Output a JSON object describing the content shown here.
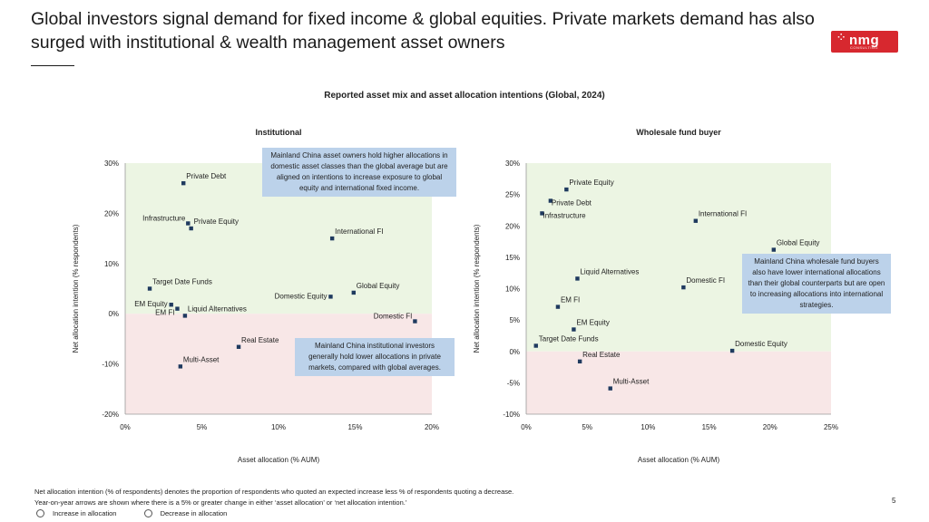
{
  "header": {
    "title": "Global investors signal demand for fixed income & global equities. Private markets demand has also surged with institutional & wealth management asset owners",
    "logo_text": "nmg",
    "logo_subtext": "CONSULTING"
  },
  "chart_title": "Reported asset mix and asset allocation intentions (Global, 2024)",
  "colors": {
    "positive_zone": "#ecf5e3",
    "negative_zone": "#f8e7e7",
    "marker": "#1f3a5f",
    "callout": "#bcd2ea",
    "logo": "#d7282f"
  },
  "chart_data": [
    {
      "type": "scatter",
      "title": "Institutional",
      "xlabel": "Asset allocation (% AUM)",
      "ylabel": "Net allocation intention (% respondents)",
      "xlim": [
        0,
        20
      ],
      "ylim": [
        -20,
        30
      ],
      "xticks": [
        0,
        5,
        10,
        15,
        20
      ],
      "yticks": [
        -20,
        -10,
        0,
        10,
        20,
        30
      ],
      "xtick_labels": [
        "0%",
        "5%",
        "10%",
        "15%",
        "20%"
      ],
      "ytick_labels": [
        "-20%",
        "-10%",
        "0%",
        "10%",
        "20%",
        "30%"
      ],
      "points": [
        {
          "label": "Private Debt",
          "x": 3.8,
          "y": 26.0,
          "anchor": "right-up"
        },
        {
          "label": "Infrastructure",
          "x": 4.1,
          "y": 18.0,
          "anchor": "left-up"
        },
        {
          "label": "Private Equity",
          "x": 4.3,
          "y": 17.0,
          "anchor": "right-up"
        },
        {
          "label": "International FI",
          "x": 13.5,
          "y": 15.0,
          "anchor": "right-up"
        },
        {
          "label": "Target Date Funds",
          "x": 1.6,
          "y": 5.0,
          "anchor": "right-up"
        },
        {
          "label": "EM Equity",
          "x": 3.0,
          "y": 1.8,
          "anchor": "left"
        },
        {
          "label": "EM FI",
          "x": 3.4,
          "y": 1.0,
          "anchor": "left-down"
        },
        {
          "label": "Liquid Alternatives",
          "x": 3.9,
          "y": -0.4,
          "anchor": "right-up"
        },
        {
          "label": "Domestic Equity",
          "x": 13.4,
          "y": 3.4,
          "anchor": "left"
        },
        {
          "label": "Global Equity",
          "x": 14.9,
          "y": 4.2,
          "anchor": "right-up"
        },
        {
          "label": "Domestic FI",
          "x": 18.9,
          "y": -1.5,
          "anchor": "left-up"
        },
        {
          "label": "Real Estate",
          "x": 7.4,
          "y": -6.6,
          "anchor": "right-up"
        },
        {
          "label": "Multi-Asset",
          "x": 3.6,
          "y": -10.5,
          "anchor": "right-up"
        }
      ],
      "callouts": [
        {
          "text": "Mainland China asset owners hold higher allocations in domestic asset classes than the global average but are aligned on intentions to increase exposure to global equity and international fixed income."
        },
        {
          "text": "Mainland China institutional investors generally hold lower allocations in private markets, compared with global averages."
        }
      ]
    },
    {
      "type": "scatter",
      "title": "Wholesale fund buyer",
      "xlabel": "Asset allocation (% AUM)",
      "ylabel": "Net allocation intention (% respondents)",
      "xlim": [
        0,
        25
      ],
      "ylim": [
        -10,
        30
      ],
      "xticks": [
        0,
        5,
        10,
        15,
        20,
        25
      ],
      "yticks": [
        -10,
        -5,
        0,
        5,
        10,
        15,
        20,
        25,
        30
      ],
      "xtick_labels": [
        "0%",
        "5%",
        "10%",
        "15%",
        "20%",
        "25%"
      ],
      "ytick_labels": [
        "-10%",
        "-5%",
        "0%",
        "5%",
        "10%",
        "15%",
        "20%",
        "25%",
        "30%"
      ],
      "points": [
        {
          "label": "Private Equity",
          "x": 3.3,
          "y": 25.8,
          "anchor": "right-up"
        },
        {
          "label": "Private Debt",
          "x": 2.0,
          "y": 24.0,
          "anchor": "right-down-tight"
        },
        {
          "label": "Infrastructure",
          "x": 1.3,
          "y": 22.0,
          "anchor": "right-down-tight"
        },
        {
          "label": "International FI",
          "x": 13.9,
          "y": 20.8,
          "anchor": "right-up"
        },
        {
          "label": "Global Equity",
          "x": 20.3,
          "y": 16.2,
          "anchor": "right-up"
        },
        {
          "label": "Liquid Alternatives",
          "x": 4.2,
          "y": 11.6,
          "anchor": "right-up"
        },
        {
          "label": "Domestic FI",
          "x": 12.9,
          "y": 10.2,
          "anchor": "right-up"
        },
        {
          "label": "EM FI",
          "x": 2.6,
          "y": 7.1,
          "anchor": "right-up"
        },
        {
          "label": "EM Equity",
          "x": 3.9,
          "y": 3.5,
          "anchor": "right-up"
        },
        {
          "label": "Target Date Funds",
          "x": 0.8,
          "y": 0.9,
          "anchor": "right-up"
        },
        {
          "label": "Domestic Equity",
          "x": 16.9,
          "y": 0.1,
          "anchor": "right-up"
        },
        {
          "label": "Real Estate",
          "x": 4.4,
          "y": -1.6,
          "anchor": "right-up"
        },
        {
          "label": "Multi-Asset",
          "x": 6.9,
          "y": -5.9,
          "anchor": "right-up"
        }
      ],
      "callouts": [
        {
          "text": "Mainland China wholesale fund buyers also have lower international allocations than their global counterparts but are open to increasing allocations into international strategies."
        }
      ]
    }
  ],
  "footnotes": [
    "Net allocation intention (% of respondents) denotes the proportion of respondents who quoted an expected increase less % of respondents quoting a decrease.",
    "Year-on-year arrows are shown where there is a 5% or greater change in either ‘asset allocation’ or ‘net allocation intention.’"
  ],
  "legend": {
    "increase": "Increase in allocation",
    "decrease": "Decrease in allocation"
  },
  "page_number": "5"
}
